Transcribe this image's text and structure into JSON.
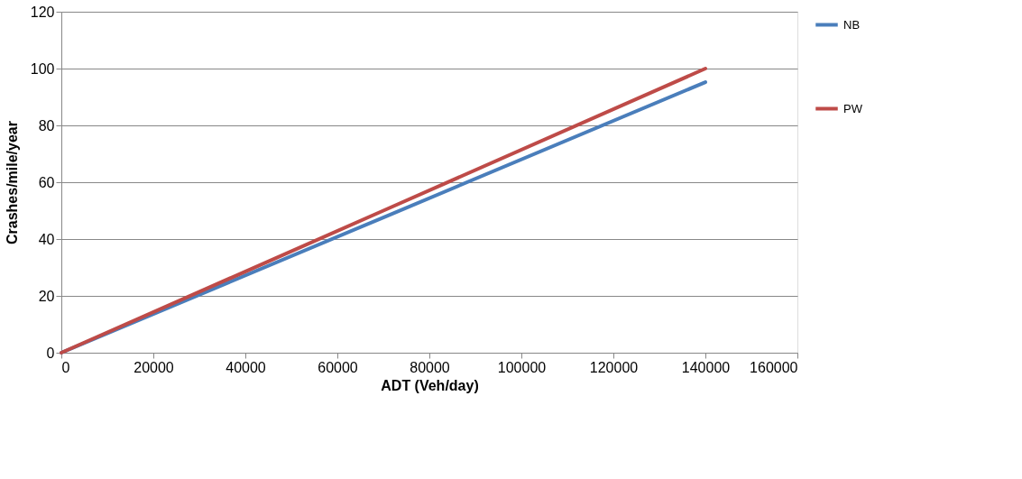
{
  "chart_data": {
    "type": "line",
    "xlabel": "ADT (Veh/day)",
    "ylabel": "Crashes/mile/year",
    "series": [
      {
        "name": "NB",
        "color": "#4a7ebb",
        "x": [
          0,
          70000,
          140000
        ],
        "values": [
          0,
          47.6,
          95.2
        ]
      },
      {
        "name": "PW",
        "color": "#be4b48",
        "x": [
          0,
          70000,
          140000
        ],
        "values": [
          0,
          50,
          100
        ]
      }
    ],
    "xlim": [
      0,
      160000
    ],
    "xticks": [
      0,
      20000,
      40000,
      60000,
      80000,
      100000,
      120000,
      140000,
      160000
    ],
    "ylim": [
      0,
      120
    ],
    "yticks": [
      0,
      20,
      40,
      60,
      80,
      100,
      120
    ],
    "grid": "y",
    "legend": "right",
    "marker": "none",
    "line_style": "solid"
  }
}
